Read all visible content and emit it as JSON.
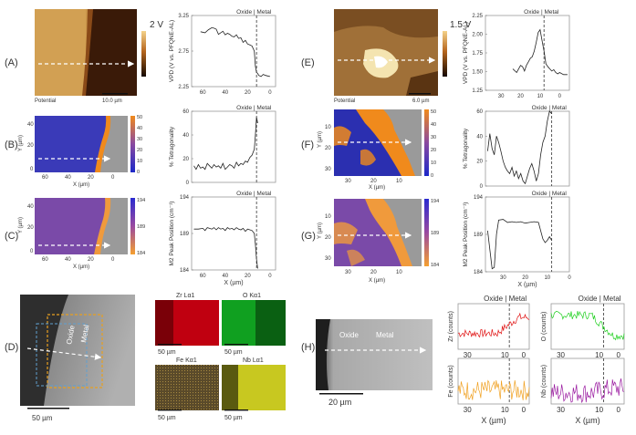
{
  "figure": {
    "panel_labels": [
      "(A)",
      "(B)",
      "(C)",
      "(D)",
      "(E)",
      "(F)",
      "(G)",
      "(H)"
    ],
    "colors": {
      "kpfm_dark": "#2a1406",
      "kpfm_light": "#f0c77a",
      "tet_low": "#2b2fb0",
      "tet_high": "#f08a1c",
      "raman_low": "#5a3aa8",
      "raman_high": "#f59a3c",
      "edx_zr": "#c00010",
      "edx_o": "#10a020",
      "edx_fe": "#c08a20",
      "edx_nb": "#c8c820",
      "line_zr": "#e01010",
      "line_o": "#20d020",
      "line_fe": "#f0a020",
      "line_nb": "#9a1aa0"
    },
    "A": {
      "map_caption": "Potential",
      "scalebar": "10.0 µm",
      "colorbar_label": "2 V",
      "plot": {
        "header": "Oxide | Metal",
        "ylabel": "VPD (V vs. PFQNE-AL)",
        "yticks": [
          "3.25",
          "2.75",
          "2.25"
        ],
        "xticks": [
          "60",
          "40",
          "20",
          "0"
        ]
      }
    },
    "B": {
      "map_ylabel": "Y (µm)",
      "map_xlabel": "X (µm)",
      "map_yticks": [
        "40",
        "20",
        "0"
      ],
      "map_xticks": [
        "60",
        "40",
        "20",
        "0"
      ],
      "colorbar_ticks": [
        "50",
        "40",
        "30",
        "20",
        "10",
        "0"
      ],
      "plot": {
        "header": "Oxide | Metal",
        "ylabel": "% Tetragonality",
        "yticks": [
          "60",
          "40",
          "20",
          "0"
        ]
      }
    },
    "C": {
      "map_ylabel": "Y (µm)",
      "map_xlabel": "X (µm)",
      "map_yticks": [
        "40",
        "20",
        "0"
      ],
      "map_xticks": [
        "60",
        "40",
        "20",
        "0"
      ],
      "colorbar_ticks": [
        "194",
        "189",
        "184"
      ],
      "plot": {
        "header": "Oxide | Metal",
        "ylabel": "M2 Peak Position (cm⁻¹)",
        "yticks": [
          "194",
          "189",
          "184"
        ],
        "xticks": [
          "60",
          "40",
          "20",
          "0"
        ],
        "xlabel": "X (µm)"
      }
    },
    "D": {
      "sem_labels": [
        "Oxide",
        "Metal"
      ],
      "sem_scalebar": "50 µm",
      "edx_titles": [
        "Zr Lα1",
        "O Kα1",
        "Fe Kα1",
        "Nb Lα1"
      ],
      "edx_scalebars": [
        "50 µm",
        "50 µm",
        "50 µm",
        "50 µm"
      ]
    },
    "E": {
      "map_caption": "Potential",
      "scalebar": "6.0 µm",
      "colorbar_label": "1.5 V",
      "plot": {
        "header": "Oxide | Metal",
        "ylabel": "VPD (V vs. PFQNE-AL)",
        "yticks": [
          "2.25",
          "2.00",
          "1.75",
          "1.50",
          "1.25"
        ],
        "xticks": [
          "30",
          "20",
          "10",
          "0"
        ]
      }
    },
    "F": {
      "map_ylabel": "Y (µm)",
      "map_xlabel": "X (µm)",
      "map_yticks": [
        "10",
        "20",
        "30"
      ],
      "map_xticks": [
        "30",
        "20",
        "10"
      ],
      "colorbar_ticks": [
        "50",
        "40",
        "30",
        "20",
        "10",
        "0"
      ],
      "plot": {
        "header": "Oxide | Metal",
        "ylabel": "% Tetragonality",
        "yticks": [
          "60",
          "40",
          "20",
          "0"
        ]
      }
    },
    "G": {
      "map_ylabel": "Y (µm)",
      "map_xlabel": "X (µm)",
      "map_yticks": [
        "10",
        "20",
        "30"
      ],
      "map_xticks": [
        "30",
        "20",
        "10"
      ],
      "colorbar_ticks": [
        "194",
        "189",
        "184"
      ],
      "plot": {
        "header": "Oxide | Metal",
        "ylabel": "M2 Peak Position (cm⁻¹)",
        "yticks": [
          "194",
          "189",
          "184"
        ],
        "xticks": [
          "30",
          "20",
          "10",
          "0"
        ],
        "xlabel": "X (µm)"
      }
    },
    "H": {
      "sem_labels": [
        "Oxide",
        "Metal"
      ],
      "sem_scalebar": "20 µm",
      "line_header": "Oxide | Metal",
      "line_ylabels": [
        "Zr (counts)",
        "O (counts)",
        "Fe (counts)",
        "Nb (counts)"
      ],
      "line_xticks": [
        "30",
        "10",
        "0"
      ],
      "line_xlabel": "X (µm)"
    }
  },
  "chart_data": [
    {
      "type": "line",
      "panel": "A",
      "title": "",
      "xlabel": "",
      "ylabel": "VPD (V vs. PFQNE-AL)",
      "xlim": [
        70,
        -5
      ],
      "ylim": [
        1.9,
        3.3
      ],
      "interface_x": 12,
      "x": [
        62,
        58,
        55,
        52,
        50,
        48,
        46,
        44,
        42,
        40,
        38,
        36,
        34,
        32,
        30,
        28,
        26,
        24,
        22,
        20,
        18,
        16,
        14,
        13,
        12,
        11,
        10,
        8,
        6,
        4,
        2,
        0
      ],
      "y": [
        2.98,
        2.96,
        3.02,
        3.06,
        3.05,
        3.03,
        2.93,
        2.96,
        2.99,
        2.92,
        2.95,
        2.93,
        2.89,
        2.88,
        2.92,
        2.85,
        2.86,
        2.77,
        2.81,
        2.74,
        2.72,
        2.7,
        2.6,
        2.3,
        2.18,
        2.16,
        2.12,
        2.1,
        2.14,
        2.12,
        2.11,
        2.1
      ]
    },
    {
      "type": "line",
      "panel": "B",
      "title": "",
      "xlabel": "",
      "ylabel": "% Tetragonality",
      "xlim": [
        70,
        -5
      ],
      "ylim": [
        0,
        60
      ],
      "interface_x": 12,
      "x": [
        68,
        66,
        64,
        62,
        60,
        58,
        56,
        54,
        52,
        50,
        48,
        46,
        44,
        42,
        40,
        38,
        36,
        34,
        32,
        30,
        28,
        26,
        24,
        22,
        20,
        18,
        16,
        14,
        13,
        12,
        11
      ],
      "y": [
        14,
        11,
        15,
        12,
        13,
        11,
        16,
        14,
        12,
        15,
        13,
        14,
        12,
        16,
        11,
        13,
        15,
        14,
        12,
        17,
        14,
        16,
        15,
        18,
        17,
        21,
        23,
        28,
        40,
        55,
        50
      ]
    },
    {
      "type": "line",
      "panel": "C",
      "title": "",
      "xlabel": "X (µm)",
      "ylabel": "M2 Peak Position (cm⁻¹)",
      "xlim": [
        70,
        -5
      ],
      "ylim": [
        184,
        194
      ],
      "interface_x": 12,
      "x": [
        68,
        64,
        60,
        58,
        56,
        54,
        52,
        50,
        48,
        46,
        44,
        42,
        40,
        38,
        36,
        34,
        32,
        30,
        28,
        26,
        24,
        22,
        20,
        18,
        16,
        14,
        13,
        12,
        11
      ],
      "y": [
        189.6,
        189.6,
        189.7,
        189.4,
        189.8,
        189.7,
        189.6,
        189.8,
        189.5,
        189.8,
        189.6,
        189.7,
        189.4,
        189.8,
        189.6,
        189.7,
        189.5,
        189.8,
        189.6,
        189.5,
        189.7,
        189.3,
        189.6,
        189.5,
        189.4,
        189.0,
        187.5,
        185.5,
        184.2
      ]
    },
    {
      "type": "line",
      "panel": "E",
      "title": "",
      "xlabel": "",
      "ylabel": "VPD (V vs. PFQNE-AL)",
      "xlim": [
        38,
        -5
      ],
      "ylim": [
        1.25,
        2.3
      ],
      "interface_x": 8,
      "x": [
        24,
        22,
        20,
        19,
        18,
        17,
        16,
        15,
        14,
        13,
        12,
        11,
        10,
        9,
        8,
        7,
        6,
        5,
        4,
        3,
        2,
        1,
        0,
        -2,
        -4
      ],
      "y": [
        1.55,
        1.5,
        1.6,
        1.58,
        1.52,
        1.6,
        1.65,
        1.7,
        1.72,
        1.8,
        1.92,
        2.06,
        2.1,
        1.95,
        1.8,
        1.62,
        1.58,
        1.55,
        1.52,
        1.54,
        1.5,
        1.48,
        1.5,
        1.47,
        1.47
      ]
    },
    {
      "type": "line",
      "panel": "F",
      "title": "",
      "xlabel": "",
      "ylabel": "% Tetragonality",
      "xlim": [
        38,
        0
      ],
      "ylim": [
        0,
        60
      ],
      "interface_x": 8,
      "x": [
        37,
        36,
        35,
        34,
        33,
        32,
        31,
        30,
        29,
        28,
        27,
        26,
        25,
        24,
        23,
        22,
        21,
        20,
        19,
        18,
        17,
        16,
        15,
        14,
        13,
        12,
        11,
        10,
        9,
        8
      ],
      "y": [
        28,
        42,
        30,
        25,
        40,
        35,
        28,
        20,
        15,
        12,
        10,
        15,
        8,
        12,
        6,
        10,
        4,
        2,
        8,
        14,
        18,
        12,
        4,
        10,
        25,
        35,
        40,
        52,
        60,
        58
      ]
    },
    {
      "type": "line",
      "panel": "G",
      "title": "",
      "xlabel": "X (µm)",
      "ylabel": "M2 Peak Position (cm⁻¹)",
      "xlim": [
        38,
        0
      ],
      "ylim": [
        184,
        194
      ],
      "interface_x": 8,
      "x": [
        37,
        36,
        35,
        34,
        33,
        32,
        30,
        28,
        26,
        24,
        22,
        20,
        18,
        16,
        14,
        12,
        11,
        10,
        9,
        8
      ],
      "y": [
        189.5,
        187,
        184.4,
        184.6,
        189.0,
        190.9,
        191.0,
        190.6,
        190.7,
        190.6,
        190.7,
        190.5,
        190.6,
        190.7,
        190.6,
        188.4,
        187.9,
        188.2,
        188.7,
        188.2
      ]
    }
  ]
}
